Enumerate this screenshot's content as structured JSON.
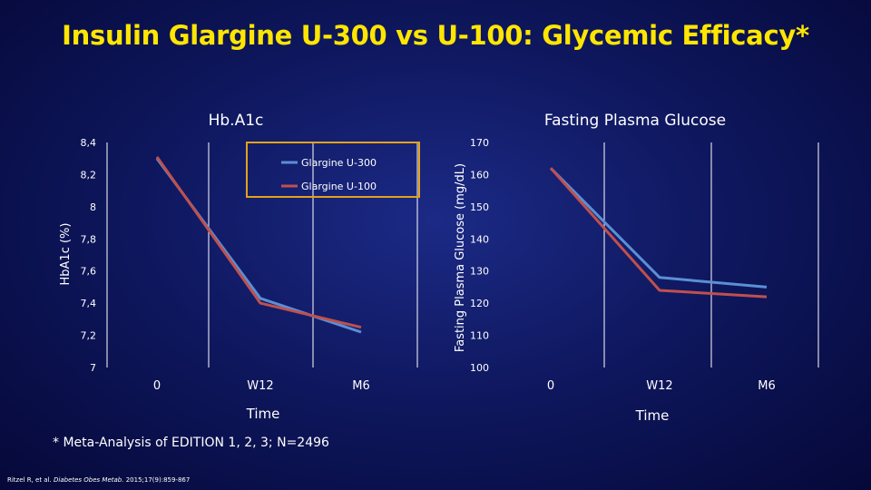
{
  "slide": {
    "title": "Insulin Glargine U-300 vs U-100: Glycemic Efficacy*",
    "footnote": "* Meta-Analysis of EDITION 1, 2, 3; N=2496",
    "citation": {
      "authors": "Ritzel R, et al.",
      "journal": "Diabetes Obes Metab.",
      "details": "2015;17(9):859-867"
    }
  },
  "colors": {
    "title": "#ffe600",
    "series_u300": "#5b8fd6",
    "series_u100": "#c0504d",
    "legend_border": "#e3a21a",
    "axis": "#ffffff"
  },
  "chart_data": [
    {
      "type": "line",
      "title": "Hb.A1c",
      "xlabel": "Time",
      "ylabel": "HbA1c (%)",
      "categories": [
        "0",
        "W12",
        "M6"
      ],
      "ylim": [
        7,
        8.4
      ],
      "yticks": [
        "8,4",
        "8,2",
        "8",
        "7,8",
        "7,6",
        "7,4",
        "7,2",
        "7"
      ],
      "ytick_values": [
        8.4,
        8.2,
        8.0,
        7.8,
        7.6,
        7.4,
        7.2,
        7.0
      ],
      "grid": "vertical",
      "legend": "top-right",
      "series": [
        {
          "name": "Glargine U-300",
          "values": [
            8.3,
            7.43,
            7.22
          ]
        },
        {
          "name": "Glargine U-100",
          "values": [
            8.31,
            7.4,
            7.25
          ]
        }
      ]
    },
    {
      "type": "line",
      "title": "Fasting Plasma Glucose",
      "xlabel": "Time",
      "ylabel": "Fasting Plasma Glucose (mg/dL)",
      "categories": [
        "0",
        "W12",
        "M6"
      ],
      "ylim": [
        100,
        170
      ],
      "yticks": [
        "170",
        "160",
        "150",
        "140",
        "130",
        "120",
        "110",
        "100"
      ],
      "ytick_values": [
        170,
        160,
        150,
        140,
        130,
        120,
        110,
        100
      ],
      "grid": "vertical",
      "legend": "none",
      "series": [
        {
          "name": "",
          "values": [
            162,
            128,
            125
          ]
        },
        {
          "name": "",
          "values": [
            162,
            124,
            122
          ]
        }
      ]
    }
  ]
}
